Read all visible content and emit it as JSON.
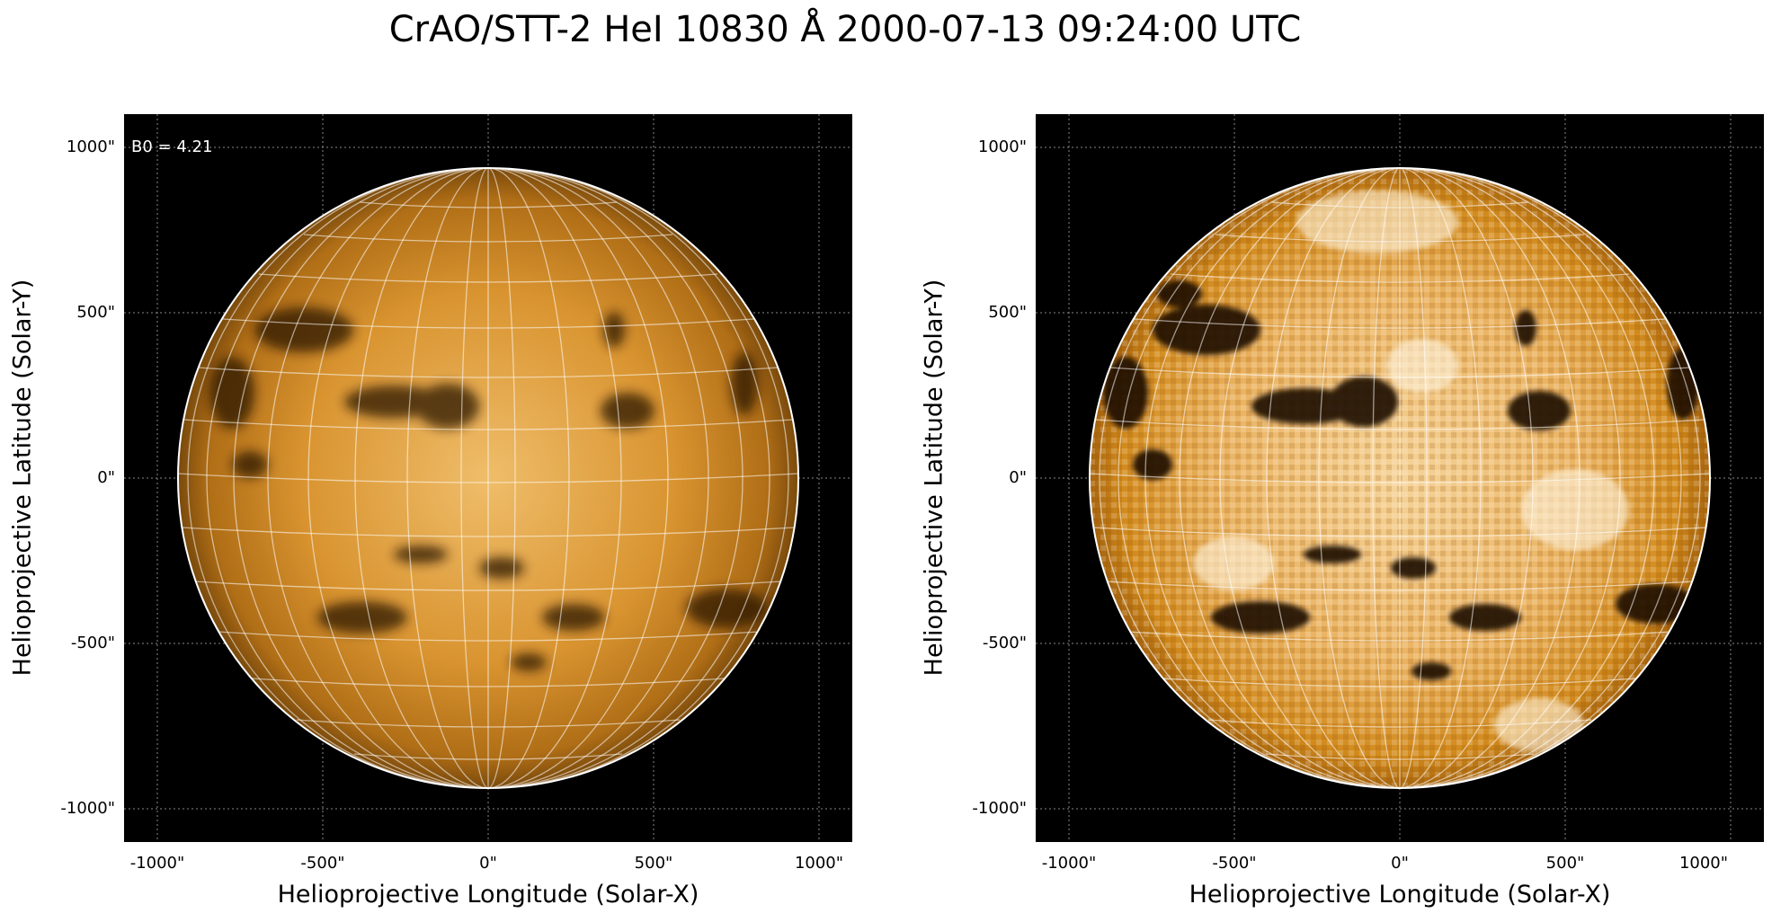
{
  "title": "CrAO/STT-2 HeI 10830 Å 2000-07-13 09:24:00 UTC",
  "panels": [
    {
      "id": "left",
      "xlabel": "Helioprojective Longitude (Solar-X)",
      "ylabel": "Helioprojective Latitude (Solar-Y)",
      "annotation": "B0 = 4.21",
      "style": "low-contrast",
      "xticks": [
        "-1000\"",
        "-500\"",
        "0\"",
        "500\"",
        "1000\""
      ],
      "yticks": [
        "1000\"",
        "500\"",
        "0\"",
        "-500\"",
        "-1000\""
      ]
    },
    {
      "id": "right",
      "xlabel": "Helioprojective Longitude (Solar-X)",
      "ylabel": "Helioprojective Latitude (Solar-Y)",
      "annotation": "",
      "style": "high-contrast",
      "xticks": [
        "-1000\"",
        "-500\"",
        "0\"",
        "500\"",
        "1000\""
      ],
      "yticks": [
        "1000\"",
        "500\"",
        "0\"",
        "-500\"",
        "-1000\""
      ]
    }
  ],
  "colors": {
    "background": "#000000",
    "disk_base": "#d28a1c",
    "disk_light": "#f2c677",
    "disk_dark": "#3a1f05",
    "grid": "#ffffff"
  }
}
